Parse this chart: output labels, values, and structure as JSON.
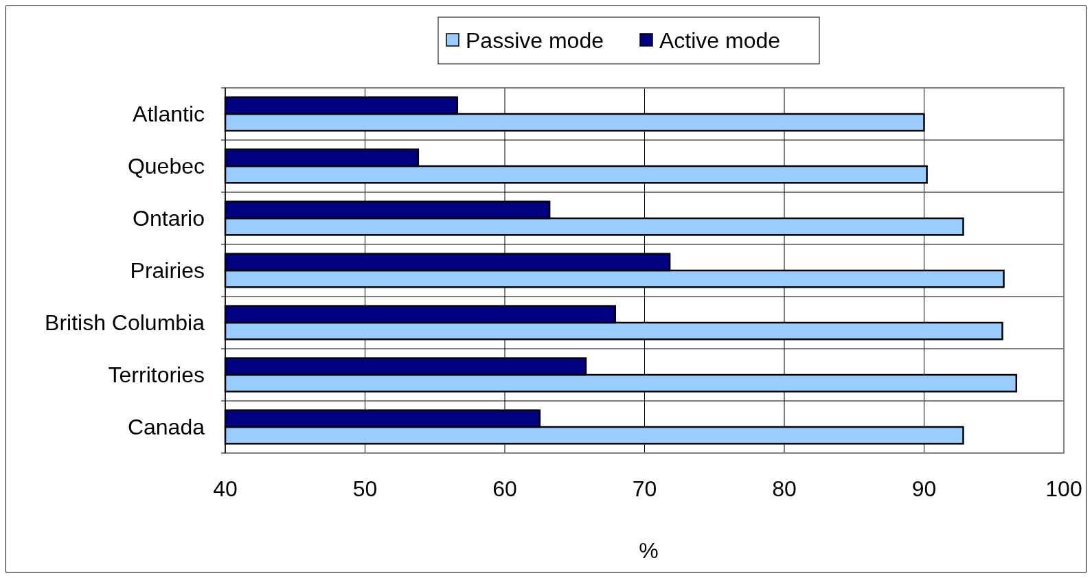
{
  "chart_data": {
    "type": "bar",
    "orientation": "horizontal",
    "xlabel": "%",
    "categories": [
      "Atlantic",
      "Quebec",
      "Ontario",
      "Prairies",
      "British Columbia",
      "Territories",
      "Canada"
    ],
    "series": [
      {
        "name": "Passive mode",
        "color": "#99ccff",
        "values": [
          90.0,
          90.2,
          92.8,
          95.7,
          95.6,
          96.6,
          92.8
        ]
      },
      {
        "name": "Active mode",
        "color": "#000080",
        "values": [
          56.6,
          53.8,
          63.2,
          71.8,
          67.9,
          65.8,
          62.5
        ]
      }
    ],
    "xlim": [
      40,
      100
    ],
    "xticks": [
      40,
      50,
      60,
      70,
      80,
      90,
      100
    ],
    "grid": true,
    "legend": "top"
  }
}
